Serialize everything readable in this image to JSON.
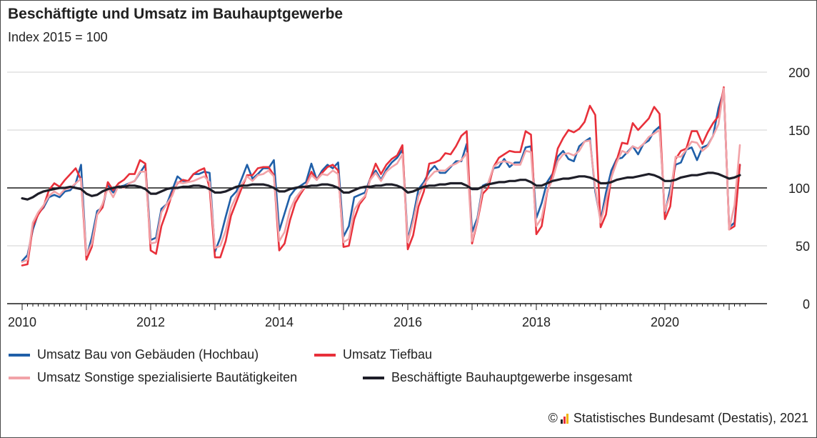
{
  "title": "Beschäftigte und Umsatz im Bauhauptgewerbe",
  "subtitle": "Index 2015 = 100",
  "source": "Statistisches Bundesamt (Destatis), 2021",
  "source_prefix": "©",
  "colors": {
    "hochbau": "#1f5fa8",
    "tiefbau": "#e8303a",
    "sonstige": "#f2a3a8",
    "beschaeftigte": "#1e1e28",
    "grid": "#d0d0d0",
    "axis": "#1a1a1a"
  },
  "chart_data": {
    "type": "line",
    "x_unit": "month",
    "x_start": "2010-01",
    "xlim": [
      "2010-01",
      "2021-03"
    ],
    "ylim": [
      0,
      200
    ],
    "yticks": [
      0,
      50,
      100,
      150,
      200
    ],
    "xticks": [
      "2010",
      "2012",
      "2014",
      "2016",
      "2018",
      "2020"
    ],
    "reference_line": 100,
    "grid": true,
    "legend_position": "bottom",
    "series": [
      {
        "name": "Umsatz Bau von Gebäuden (Hochbau)",
        "color": "#1f5fa8",
        "values": [
          37,
          42,
          64,
          78,
          83,
          92,
          94,
          92,
          97,
          98,
          104,
          120,
          40,
          57,
          80,
          83,
          102,
          96,
          101,
          102,
          104,
          106,
          113,
          120,
          55,
          57,
          82,
          86,
          98,
          110,
          106,
          106,
          112,
          112,
          114,
          113,
          45,
          57,
          75,
          92,
          97,
          108,
          120,
          108,
          112,
          117,
          117,
          124,
          63,
          78,
          93,
          99,
          102,
          105,
          121,
          107,
          115,
          120,
          117,
          122,
          58,
          67,
          92,
          94,
          96,
          108,
          115,
          107,
          116,
          122,
          126,
          133,
          55,
          75,
          99,
          105,
          114,
          119,
          113,
          113,
          118,
          123,
          123,
          138,
          62,
          74,
          102,
          104,
          117,
          118,
          125,
          118,
          122,
          122,
          135,
          136,
          74,
          87,
          105,
          112,
          127,
          132,
          125,
          123,
          136,
          140,
          143,
          97,
          72,
          96,
          115,
          125,
          126,
          131,
          136,
          129,
          138,
          141,
          149,
          153,
          78,
          99,
          120,
          122,
          133,
          135,
          124,
          135,
          137,
          145,
          169,
          184,
          66,
          70,
          120
        ]
      },
      {
        "name": "Umsatz Tiefbau",
        "color": "#e8303a",
        "values": [
          33,
          34,
          67,
          77,
          84,
          98,
          104,
          101,
          107,
          112,
          117,
          107,
          38,
          49,
          77,
          83,
          105,
          98,
          104,
          107,
          112,
          112,
          124,
          121,
          46,
          43,
          67,
          80,
          95,
          104,
          107,
          106,
          112,
          115,
          117,
          100,
          40,
          40,
          54,
          76,
          88,
          100,
          111,
          111,
          117,
          118,
          118,
          111,
          46,
          52,
          72,
          87,
          95,
          102,
          114,
          107,
          113,
          118,
          120,
          115,
          49,
          50,
          73,
          86,
          92,
          108,
          121,
          112,
          120,
          125,
          128,
          137,
          47,
          59,
          84,
          97,
          121,
          122,
          124,
          130,
          129,
          136,
          145,
          149,
          52,
          71,
          95,
          100,
          118,
          126,
          129,
          132,
          131,
          131,
          149,
          146,
          60,
          67,
          96,
          111,
          134,
          143,
          150,
          148,
          151,
          157,
          171,
          163,
          66,
          77,
          109,
          124,
          139,
          138,
          156,
          150,
          155,
          160,
          170,
          164,
          73,
          84,
          125,
          132,
          134,
          149,
          149,
          138,
          148,
          156,
          162,
          187,
          64,
          67,
          120
        ]
      },
      {
        "name": "Umsatz Sonstige spezialisierte Bautätigkeiten",
        "color": "#f2a3a8",
        "values": [
          36,
          38,
          70,
          79,
          85,
          93,
          97,
          94,
          99,
          100,
          104,
          108,
          42,
          52,
          77,
          86,
          100,
          92,
          102,
          100,
          104,
          106,
          114,
          114,
          52,
          53,
          79,
          86,
          93,
          105,
          104,
          105,
          106,
          108,
          110,
          105,
          48,
          50,
          63,
          83,
          93,
          103,
          110,
          106,
          111,
          112,
          115,
          110,
          54,
          62,
          81,
          91,
          97,
          102,
          111,
          107,
          112,
          111,
          115,
          112,
          53,
          56,
          81,
          88,
          93,
          107,
          113,
          106,
          114,
          118,
          121,
          129,
          53,
          71,
          93,
          103,
          109,
          114,
          115,
          115,
          119,
          121,
          124,
          130,
          54,
          72,
          100,
          104,
          118,
          122,
          123,
          122,
          120,
          120,
          132,
          131,
          67,
          74,
          97,
          107,
          123,
          129,
          130,
          128,
          132,
          140,
          141,
          100,
          70,
          89,
          109,
          122,
          132,
          130,
          136,
          134,
          138,
          144,
          147,
          150,
          80,
          94,
          127,
          127,
          133,
          140,
          139,
          132,
          136,
          145,
          155,
          186,
          64,
          85,
          137
        ]
      },
      {
        "name": "Beschäftigte Bauhauptgewerbe insgesamt",
        "color": "#1e1e28",
        "values": [
          91,
          90,
          92,
          95,
          97,
          98,
          99,
          100,
          100,
          101,
          100,
          99,
          95,
          93,
          94,
          97,
          99,
          100,
          101,
          101,
          102,
          102,
          101,
          99,
          95,
          95,
          97,
          99,
          100,
          100,
          101,
          101,
          102,
          102,
          101,
          99,
          96,
          96,
          97,
          99,
          101,
          102,
          102,
          103,
          103,
          103,
          102,
          100,
          97,
          97,
          99,
          100,
          101,
          101,
          102,
          102,
          103,
          103,
          102,
          100,
          96,
          96,
          98,
          100,
          101,
          101,
          102,
          102,
          103,
          103,
          102,
          100,
          96,
          97,
          99,
          101,
          102,
          102,
          103,
          103,
          104,
          104,
          104,
          102,
          99,
          99,
          101,
          103,
          104,
          105,
          105,
          106,
          106,
          107,
          107,
          105,
          102,
          102,
          104,
          106,
          107,
          108,
          108,
          109,
          110,
          110,
          109,
          107,
          104,
          104,
          105,
          107,
          108,
          109,
          109,
          110,
          111,
          112,
          111,
          109,
          106,
          106,
          107,
          109,
          110,
          111,
          111,
          112,
          113,
          113,
          112,
          110,
          108,
          109,
          111
        ]
      }
    ]
  }
}
